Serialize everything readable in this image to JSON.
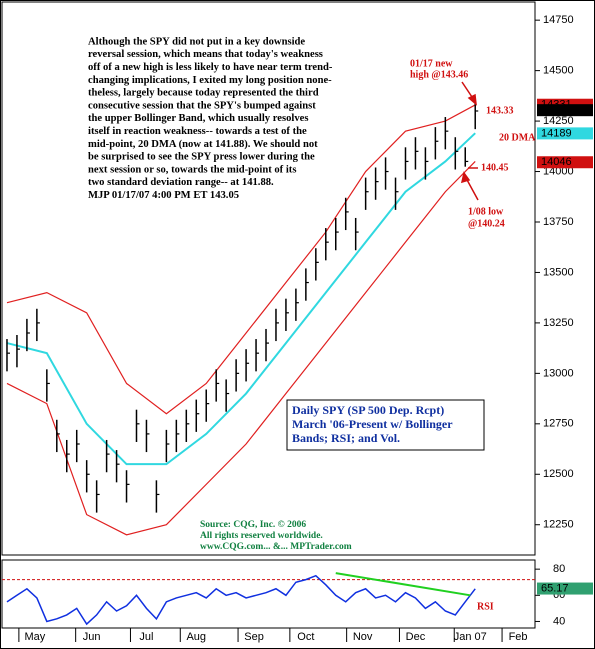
{
  "chart_data": {
    "type": "range_bar",
    "annotation": [
      "Although the SPY did not put in a key downside",
      "reversal session, which means that today's weakness",
      "off of a new high is less likely to have near term trend-",
      "changing implications, I exited my long position none-",
      "theless, largely because today represented the third",
      "consecutive session that the SPY's bumped against",
      "the upper Bollinger Band, which usually resolves",
      "itself in reaction weakness-- towards a test of the",
      "mid-point, 20 DMA (now at 141.88).  We should not",
      "be surprised to see the SPY press lower during the",
      "next session or so, towards the mid-point of its",
      "two standard deviation range-- at 141.88.",
      "MJP  01/17/07  4:00 PM ET  143.05"
    ],
    "callouts": {
      "new_high": [
        "01/17 new",
        "high @143.46"
      ],
      "last": "143.33",
      "dma": "20 DMA",
      "close_low": "140.45",
      "low": [
        "1/08 low",
        "@140.24"
      ],
      "rsi": "RSI"
    },
    "legend_box": [
      "Daily SPY (SP 500 Dep. Rcpt)",
      "March '06-Present w/ Bollinger",
      "Bands; RSI; and Vol."
    ],
    "source": [
      "Source: CQG, Inc. © 2006",
      "All rights reserved worldwide.",
      "www.CQG.com... &... MPTrader.com"
    ],
    "bar_color": "#000000",
    "bars": {
      "high": [
        13170,
        13190,
        13270,
        13320,
        13020,
        12770,
        12670,
        12720,
        12570,
        12470,
        12670,
        12620,
        12520,
        12820,
        12770,
        12470,
        12720,
        12770,
        12820,
        12870,
        12920,
        13020,
        12970,
        13070,
        13120,
        13170,
        13220,
        13320,
        13370,
        13420,
        13520,
        13620,
        13720,
        13770,
        13870,
        13770,
        13970,
        14020,
        14070,
        13970,
        14120,
        14170,
        14120,
        14220,
        14270,
        14170,
        14120,
        14346
      ],
      "low": [
        13010,
        13030,
        13110,
        13160,
        12860,
        12610,
        12510,
        12560,
        12410,
        12310,
        12510,
        12460,
        12360,
        12660,
        12610,
        12310,
        12560,
        12610,
        12660,
        12710,
        12760,
        12860,
        12810,
        12910,
        12960,
        13010,
        13060,
        13160,
        13210,
        13260,
        13360,
        13460,
        13560,
        13610,
        13710,
        13610,
        13810,
        13860,
        13910,
        13810,
        13960,
        14010,
        13960,
        14060,
        14110,
        14010,
        14024,
        14210
      ],
      "close": [
        13100,
        13120,
        13200,
        13250,
        12950,
        12700,
        12600,
        12650,
        12500,
        12400,
        12600,
        12550,
        12450,
        12750,
        12700,
        12400,
        12650,
        12700,
        12750,
        12800,
        12850,
        12950,
        12900,
        13000,
        13050,
        13100,
        13150,
        13250,
        13300,
        13350,
        13450,
        13550,
        13650,
        13700,
        13800,
        13700,
        13900,
        13950,
        14000,
        13900,
        14050,
        14100,
        14050,
        14150,
        14200,
        14100,
        14050,
        14300
      ]
    },
    "band_x": [
      0,
      4,
      8,
      12,
      16,
      20,
      24,
      28,
      32,
      36,
      40,
      44,
      47
    ],
    "series": [
      {
        "name": "upper",
        "color": "#e02020",
        "values": [
          13350,
          13400,
          13300,
          12950,
          12800,
          12950,
          13200,
          13450,
          13700,
          14000,
          14200,
          14250,
          14330
        ]
      },
      {
        "name": "mid",
        "color": "#30d8e0",
        "values": [
          13150,
          13100,
          12750,
          12550,
          12550,
          12700,
          12900,
          13150,
          13400,
          13650,
          13900,
          14050,
          14190
        ]
      },
      {
        "name": "lower",
        "color": "#e02020",
        "values": [
          12950,
          12850,
          12300,
          12200,
          12250,
          12450,
          12650,
          12900,
          13150,
          13400,
          13650,
          13900,
          14050
        ]
      }
    ],
    "ylim": [
      12100,
      14840
    ],
    "yticks": [
      12250,
      12500,
      12750,
      13000,
      13250,
      13500,
      13750,
      14000,
      14250,
      14500,
      14750
    ],
    "price_boxes": [
      {
        "value": 14331,
        "color": "#d01010"
      },
      {
        "value": 14304,
        "color": "#000000"
      },
      {
        "value": 14189,
        "color": "#30d8e0"
      },
      {
        "value": 14046,
        "color": "#d01010"
      }
    ],
    "xlim": [
      -0.5,
      53
    ],
    "xticks": [
      {
        "value": 2.8,
        "label": "May"
      },
      {
        "value": 8.5,
        "label": "Jun"
      },
      {
        "value": 14,
        "label": "Jul"
      },
      {
        "value": 19,
        "label": "Aug"
      },
      {
        "value": 24.8,
        "label": "Sep"
      },
      {
        "value": 30,
        "label": "Oct"
      },
      {
        "value": 35.7,
        "label": "Nov"
      },
      {
        "value": 41,
        "label": "Dec"
      },
      {
        "value": 46.5,
        "label": "Jan 07"
      },
      {
        "value": 51.3,
        "label": "Feb"
      }
    ],
    "rsi": {
      "color": "#1030e0",
      "values": [
        55,
        60,
        65,
        58,
        40,
        42,
        45,
        50,
        38,
        45,
        55,
        48,
        52,
        60,
        50,
        42,
        55,
        58,
        60,
        62,
        58,
        65,
        60,
        62,
        58,
        60,
        62,
        65,
        60,
        70,
        72,
        75,
        68,
        60,
        55,
        62,
        65,
        58,
        60,
        55,
        62,
        58,
        50,
        55,
        48,
        45,
        55,
        65
      ],
      "ylim": [
        35,
        87
      ],
      "yticks": [
        40,
        60,
        80
      ],
      "overbought": 72,
      "last_box": {
        "value": 65.17,
        "color": "#30a070"
      },
      "trend": {
        "x": [
          33,
          46.5
        ],
        "values": [
          77,
          60
        ],
        "color": "#20d020"
      }
    }
  }
}
